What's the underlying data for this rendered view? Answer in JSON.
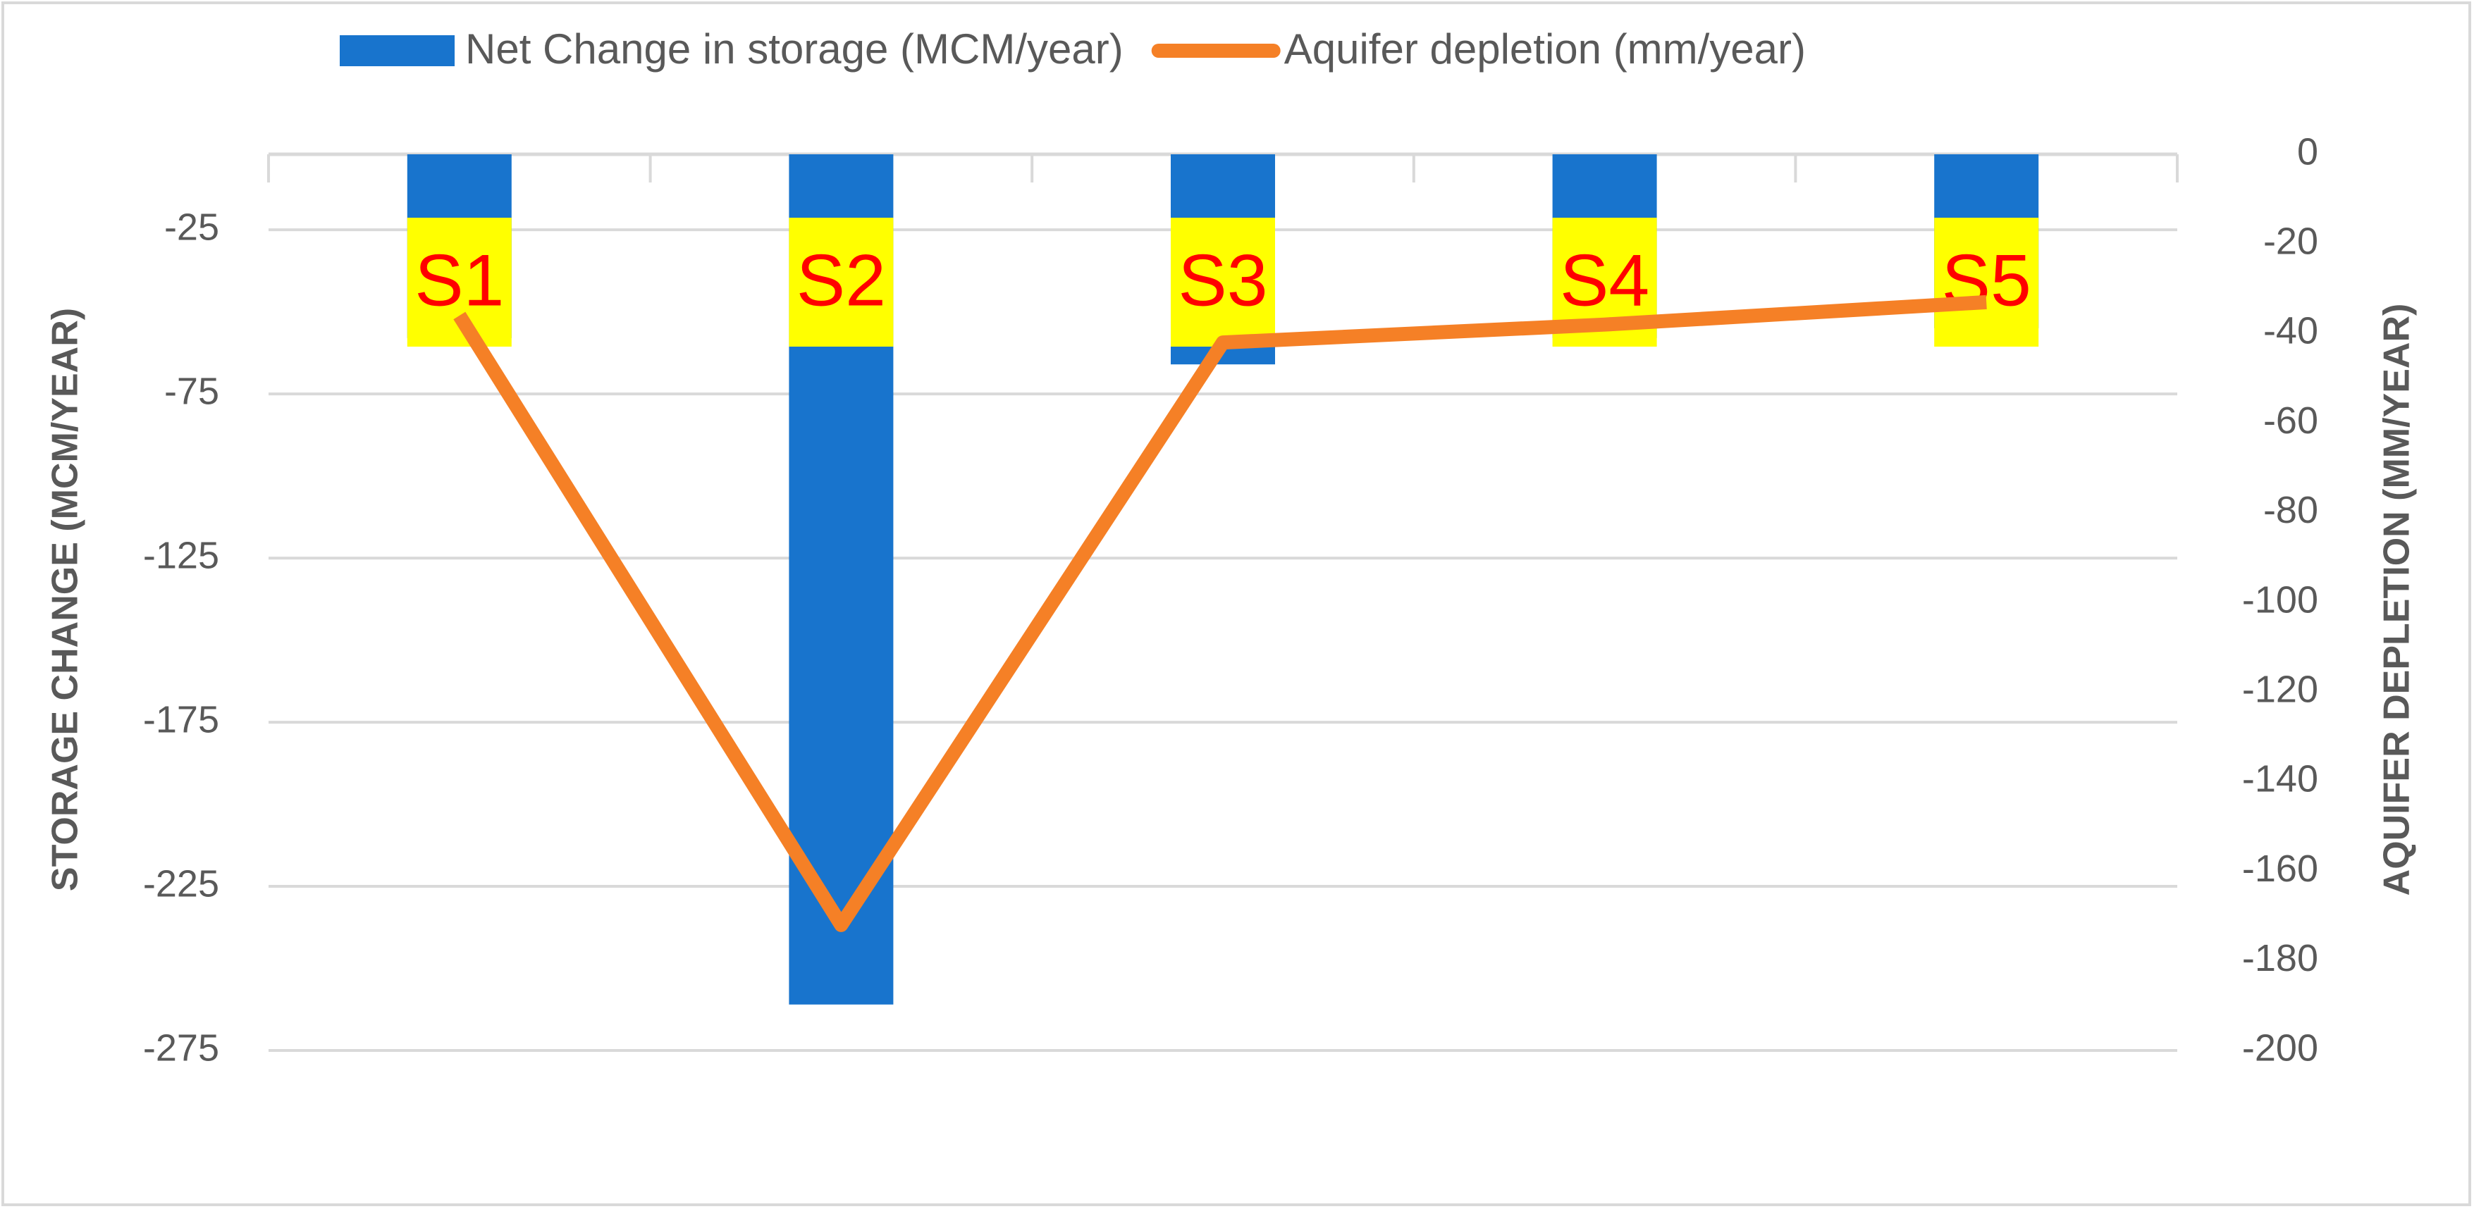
{
  "chart_data": {
    "type": "bar+line",
    "categories": [
      "S1",
      "S2",
      "S3",
      "S4",
      "S5"
    ],
    "series": [
      {
        "name": "Net Change in storage (MCM/year)",
        "color": "#1874cd",
        "type": "bar",
        "values": [
          -58,
          -261,
          -66,
          -58,
          -55
        ]
      },
      {
        "name": "Aquifer depletion (mm/year)",
        "color": "#f58026",
        "type": "line",
        "axis": "y2",
        "values": [
          -36,
          -172,
          -42,
          -38,
          -33
        ]
      }
    ],
    "ylabel": "STORAGE CHANGE (MCM/YEAR)",
    "y2label": "AQUIFER DEPLETION (MM/YEAR)",
    "ylim": [
      -275,
      -2
    ],
    "yticks": [
      -275,
      -225,
      -175,
      -125,
      -75,
      -25
    ],
    "y2lim": [
      -200,
      0
    ],
    "y2ticks": [
      -200,
      -180,
      -160,
      -140,
      -120,
      -100,
      -80,
      -60,
      -40,
      -20,
      0
    ],
    "grid": true,
    "legend": "top"
  }
}
